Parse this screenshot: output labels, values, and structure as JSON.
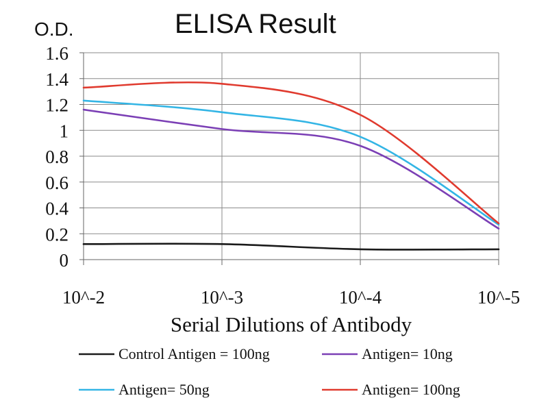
{
  "chart_data": {
    "type": "line",
    "title": "ELISA Result",
    "ylabel": "O.D.",
    "xlabel": "Serial Dilutions of Antibody",
    "categories": [
      "10^-2",
      "10^-3",
      "10^-4",
      "10^-5"
    ],
    "ylim": [
      0,
      1.6
    ],
    "yticks": [
      "0",
      "0.2",
      "0.4",
      "0.6",
      "0.8",
      "1",
      "1.2",
      "1.4",
      "1.6"
    ],
    "grid": true,
    "legend_position": "bottom",
    "series": [
      {
        "name": "Control Antigen = 100ng",
        "color": "#1a1a1a",
        "values": [
          0.12,
          0.12,
          0.08,
          0.08
        ]
      },
      {
        "name": "Antigen= 10ng",
        "color": "#7b3fb5",
        "values": [
          1.16,
          1.01,
          0.88,
          0.24
        ]
      },
      {
        "name": "Antigen= 50ng",
        "color": "#33b5e5",
        "values": [
          1.23,
          1.14,
          0.95,
          0.27
        ]
      },
      {
        "name": "Antigen= 100ng",
        "color": "#e03a2e",
        "values": [
          1.33,
          1.36,
          1.12,
          0.28
        ]
      }
    ]
  }
}
